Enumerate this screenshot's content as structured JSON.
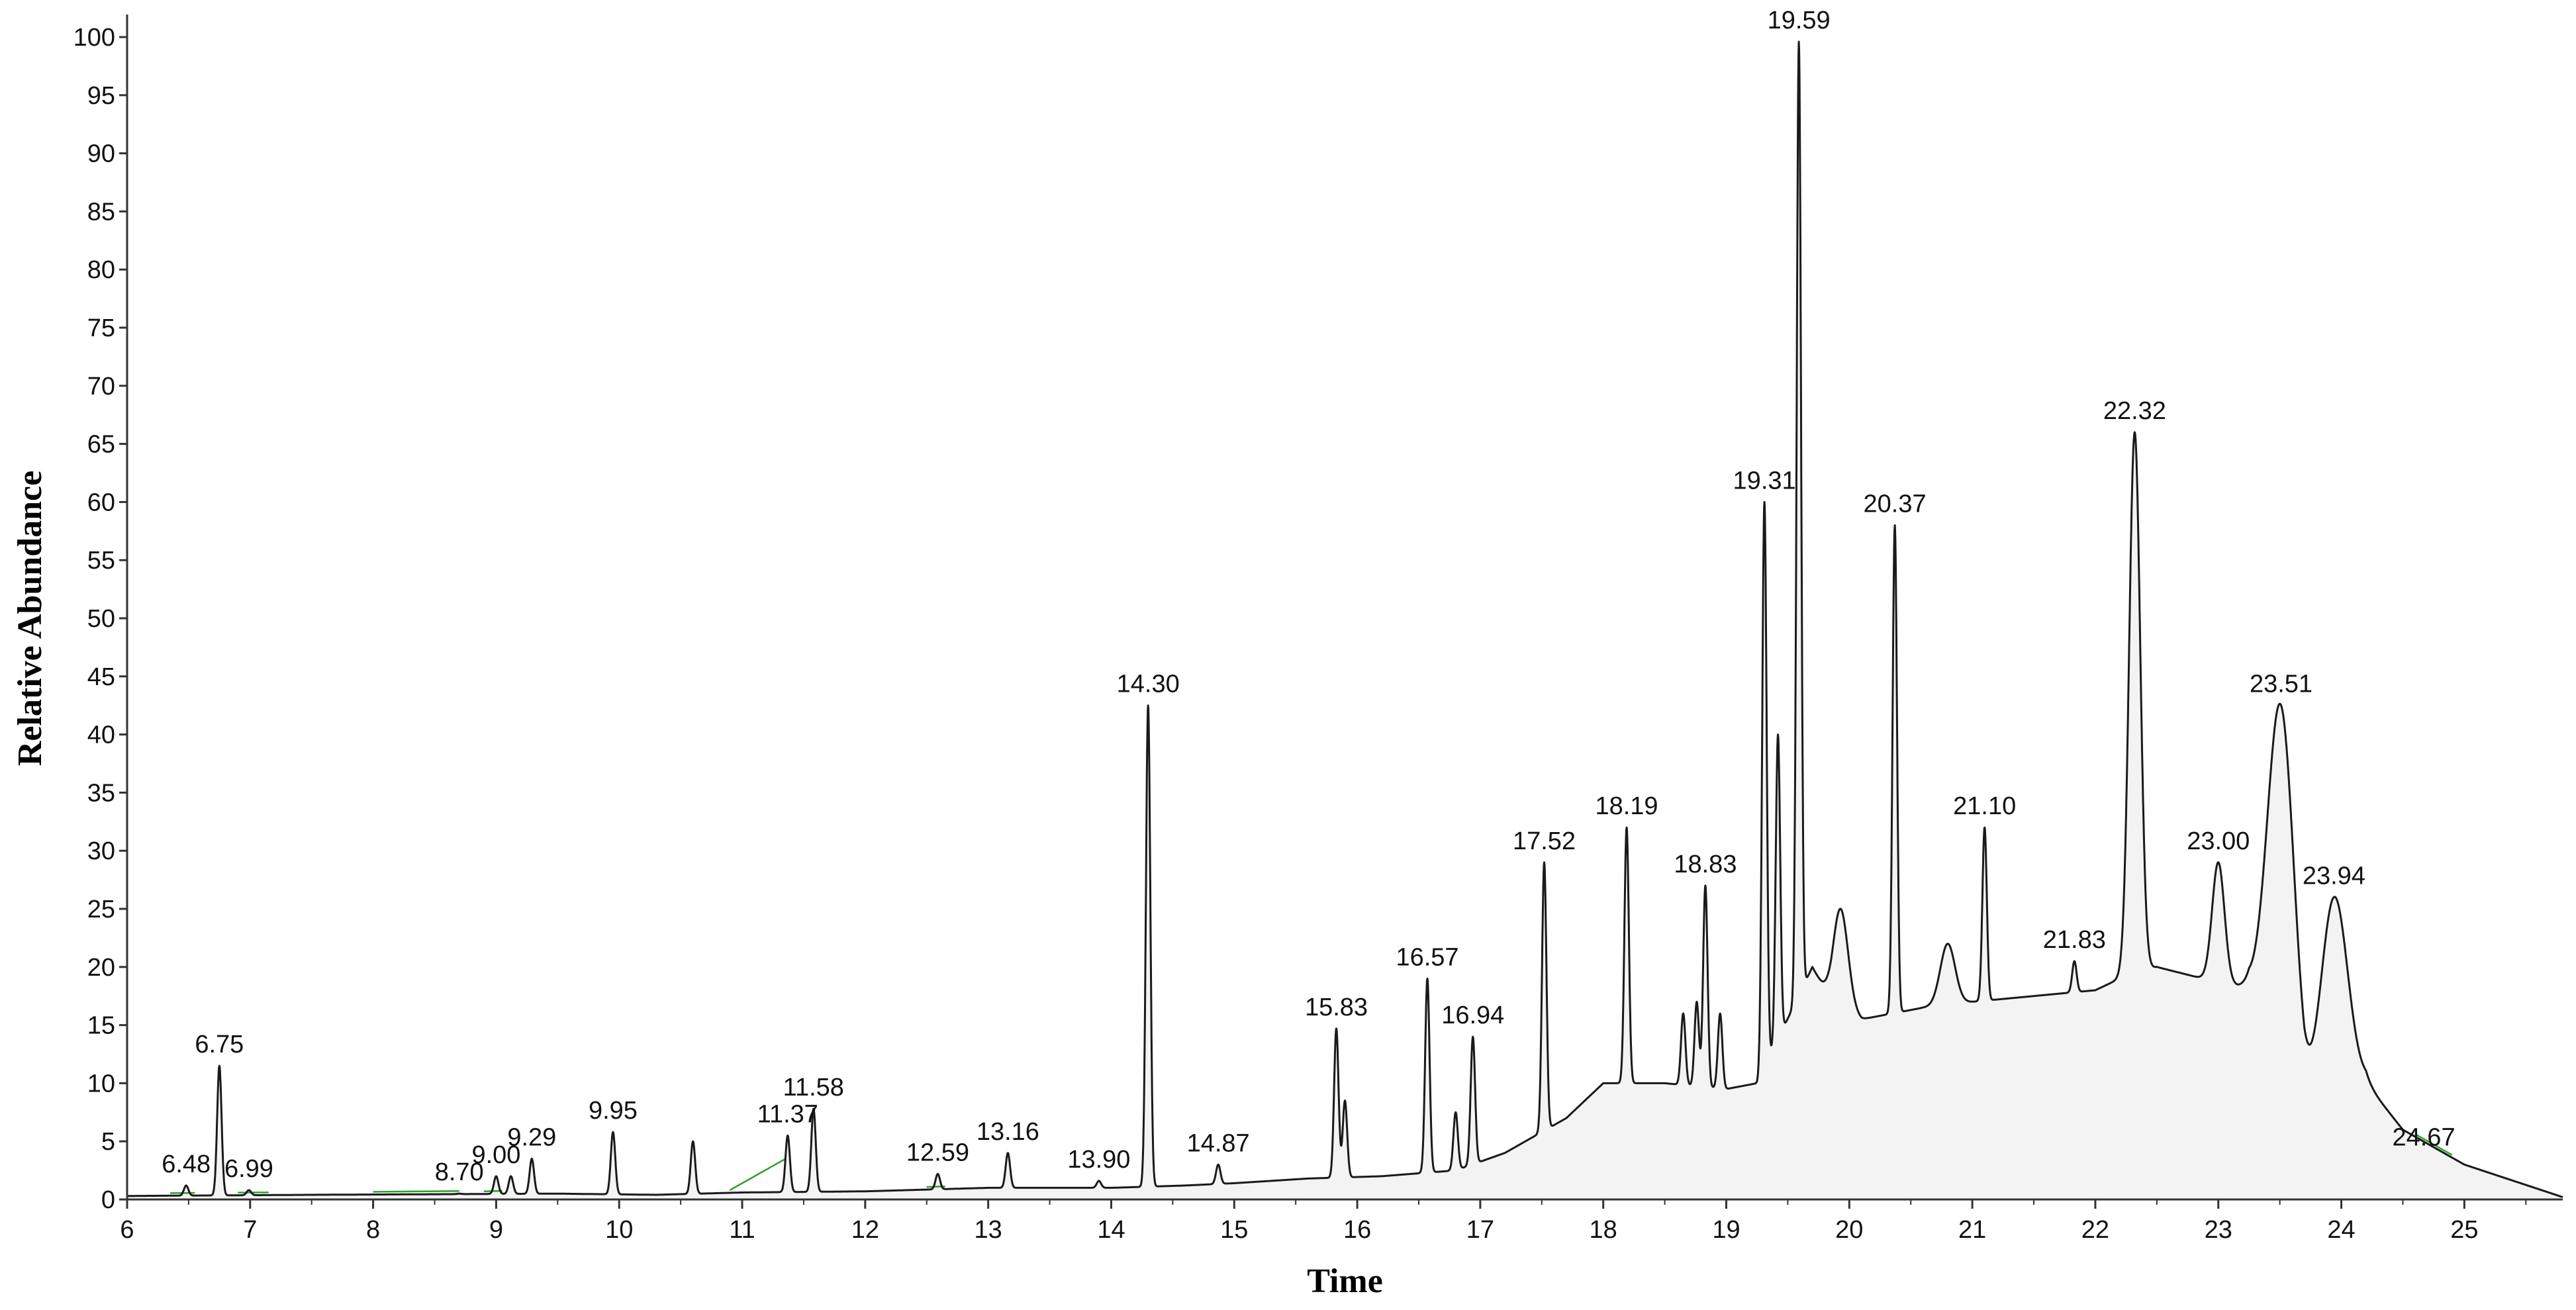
{
  "chart_data": {
    "type": "line",
    "title": "",
    "xlabel": "Time",
    "ylabel": "Relative Abundance",
    "xlim": [
      6,
      25.8
    ],
    "ylim": [
      0,
      100
    ],
    "x_ticks": [
      6,
      7,
      8,
      9,
      10,
      11,
      12,
      13,
      14,
      15,
      16,
      17,
      18,
      19,
      20,
      21,
      22,
      23,
      24,
      25
    ],
    "y_ticks": [
      0,
      5,
      10,
      15,
      20,
      25,
      30,
      35,
      40,
      45,
      50,
      55,
      60,
      65,
      70,
      75,
      80,
      85,
      90,
      95,
      100
    ],
    "grid": false,
    "colors": {
      "trace": "#1a1a1a",
      "fill": "#f3f3f3",
      "integration": "#2ca02c"
    },
    "baseline_points": [
      [
        6.0,
        0.3
      ],
      [
        7.5,
        0.4
      ],
      [
        9.5,
        0.5
      ],
      [
        10.3,
        0.4
      ],
      [
        11.0,
        0.6
      ],
      [
        12.0,
        0.7
      ],
      [
        13.0,
        1.0
      ],
      [
        14.0,
        1.0
      ],
      [
        14.6,
        1.2
      ],
      [
        15.0,
        1.4
      ],
      [
        15.6,
        1.8
      ],
      [
        16.2,
        2.0
      ],
      [
        16.8,
        2.5
      ],
      [
        17.2,
        4.0
      ],
      [
        17.7,
        7.0
      ],
      [
        18.0,
        10.0
      ],
      [
        18.5,
        10.0
      ],
      [
        19.0,
        9.5
      ],
      [
        19.25,
        10.0
      ],
      [
        19.7,
        20.0
      ],
      [
        19.85,
        17.0
      ],
      [
        20.1,
        15.5
      ],
      [
        20.6,
        16.5
      ],
      [
        21.0,
        17.0
      ],
      [
        21.5,
        17.5
      ],
      [
        22.0,
        18.0
      ],
      [
        22.2,
        19.0
      ],
      [
        22.5,
        20.0
      ],
      [
        23.25,
        18.0
      ],
      [
        23.7,
        6.0
      ],
      [
        24.2,
        10.0
      ],
      [
        24.5,
        6.0
      ],
      [
        25.0,
        3.0
      ],
      [
        25.8,
        0.2
      ]
    ],
    "peaks": [
      {
        "x": 6.48,
        "y": 1.2,
        "label": "6.48"
      },
      {
        "x": 6.75,
        "y": 11.5,
        "label": "6.75"
      },
      {
        "x": 6.99,
        "y": 0.8,
        "label": "6.99"
      },
      {
        "x": 8.7,
        "y": 0.5,
        "label": "8.70"
      },
      {
        "x": 9.0,
        "y": 2.0,
        "label": "9.00"
      },
      {
        "x": 9.12,
        "y": 2.0,
        "label": ""
      },
      {
        "x": 9.29,
        "y": 3.5,
        "label": "9.29"
      },
      {
        "x": 9.95,
        "y": 5.8,
        "label": "9.95"
      },
      {
        "x": 10.6,
        "y": 5.0,
        "label": ""
      },
      {
        "x": 11.37,
        "y": 5.5,
        "label": "11.37"
      },
      {
        "x": 11.58,
        "y": 7.8,
        "label": "11.58"
      },
      {
        "x": 12.59,
        "y": 2.2,
        "label": "12.59"
      },
      {
        "x": 13.16,
        "y": 4.0,
        "label": "13.16"
      },
      {
        "x": 13.9,
        "y": 1.6,
        "label": "13.90"
      },
      {
        "x": 14.3,
        "y": 42.5,
        "label": "14.30"
      },
      {
        "x": 14.87,
        "y": 3.0,
        "label": "14.87"
      },
      {
        "x": 15.83,
        "y": 14.7,
        "label": "15.83"
      },
      {
        "x": 15.9,
        "y": 8.5,
        "label": ""
      },
      {
        "x": 16.57,
        "y": 19.0,
        "label": "16.57"
      },
      {
        "x": 16.8,
        "y": 7.5,
        "label": ""
      },
      {
        "x": 16.94,
        "y": 14.0,
        "label": "16.94"
      },
      {
        "x": 17.52,
        "y": 29.0,
        "label": "17.52"
      },
      {
        "x": 18.19,
        "y": 32.0,
        "label": "18.19"
      },
      {
        "x": 18.65,
        "y": 16.0,
        "label": ""
      },
      {
        "x": 18.76,
        "y": 17.0,
        "label": ""
      },
      {
        "x": 18.83,
        "y": 27.0,
        "label": "18.83"
      },
      {
        "x": 18.95,
        "y": 16.0,
        "label": ""
      },
      {
        "x": 19.31,
        "y": 60.0,
        "label": "19.31"
      },
      {
        "x": 19.42,
        "y": 40.0,
        "label": ""
      },
      {
        "x": 19.59,
        "y": 99.6,
        "label": "19.59"
      },
      {
        "x": 19.93,
        "y": 25.0,
        "label": ""
      },
      {
        "x": 20.37,
        "y": 58.0,
        "label": "20.37"
      },
      {
        "x": 20.8,
        "y": 22.0,
        "label": ""
      },
      {
        "x": 21.1,
        "y": 32.0,
        "label": "21.10"
      },
      {
        "x": 21.83,
        "y": 20.5,
        "label": "21.83"
      },
      {
        "x": 22.32,
        "y": 66.0,
        "label": "22.32"
      },
      {
        "x": 23.0,
        "y": 29.0,
        "label": "23.00"
      },
      {
        "x": 23.51,
        "y": 42.5,
        "label": "23.51"
      },
      {
        "x": 23.94,
        "y": 26.0,
        "label": "23.94"
      },
      {
        "x": 24.67,
        "y": 3.5,
        "label": "24.67"
      }
    ]
  }
}
